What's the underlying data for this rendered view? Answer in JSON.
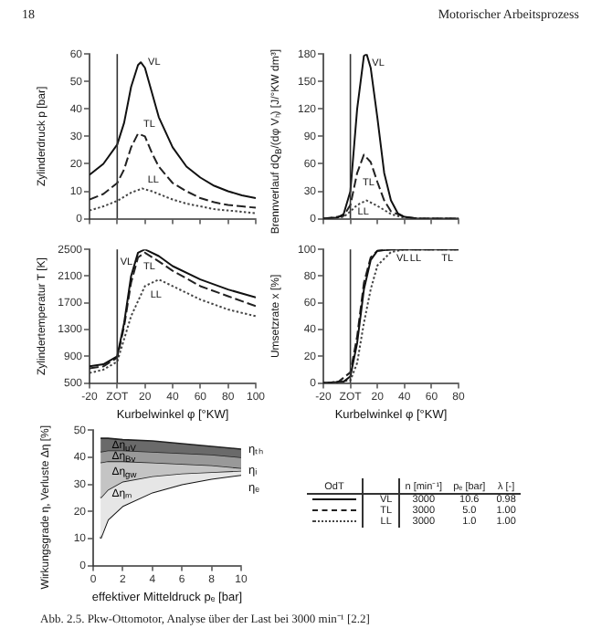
{
  "chart_data": [
    {
      "type": "line",
      "ylabel": "Zylinderdruck p [bar]",
      "xlim": [
        -20,
        100
      ],
      "xticks": [
        -20,
        0,
        20,
        40,
        60,
        80,
        100
      ],
      "ylim": [
        0,
        60
      ],
      "yticks": [
        0,
        10,
        20,
        30,
        40,
        50,
        60
      ],
      "tick_labels": "y",
      "grid": false,
      "legend": false,
      "marker": "none",
      "ref_lines": [
        {
          "axis": "x",
          "value": 0
        }
      ],
      "annotations": [
        "18",
        "Motorischer Arbeitsprozess"
      ],
      "series": [
        {
          "name": "VL",
          "color": "#111111",
          "line_style": "solid",
          "x": [
            -20,
            -10,
            0,
            5,
            10,
            15,
            17,
            20,
            25,
            30,
            40,
            50,
            60,
            70,
            80,
            90,
            100
          ],
          "values": [
            16,
            20,
            27,
            35,
            48,
            56,
            57,
            55,
            46,
            37,
            26,
            19,
            15,
            12,
            10,
            8.5,
            7.5
          ]
        },
        {
          "name": "TL",
          "color": "#222222",
          "line_style": "dashed",
          "x": [
            -20,
            -10,
            0,
            5,
            10,
            15,
            20,
            25,
            30,
            40,
            50,
            60,
            70,
            80,
            90,
            100
          ],
          "values": [
            7,
            9,
            13,
            18,
            26,
            31,
            30,
            24,
            19,
            13,
            10,
            7.5,
            6,
            5,
            4.5,
            4
          ]
        },
        {
          "name": "LL",
          "color": "#444444",
          "line_style": "dotted",
          "x": [
            -20,
            -10,
            0,
            10,
            18,
            25,
            30,
            40,
            50,
            60,
            70,
            80,
            90,
            100
          ],
          "values": [
            3,
            4.5,
            6.5,
            9.5,
            11,
            10,
            9,
            7,
            5.5,
            4.5,
            3.5,
            3,
            2.5,
            2
          ]
        }
      ]
    },
    {
      "type": "line",
      "ylabel": "Brennverlauf dQ$_{B}$/(dφ Vₕ) [J/°KW dm³]",
      "xlim": [
        -20,
        80
      ],
      "xticks": [
        -20,
        0,
        20,
        40,
        60,
        80
      ],
      "ylim": [
        0,
        180
      ],
      "yticks": [
        0,
        30,
        60,
        90,
        120,
        150,
        180
      ],
      "tick_labels": "y",
      "grid": false,
      "legend": false,
      "marker": "none",
      "ref_lines": [
        {
          "axis": "x",
          "value": 0
        }
      ],
      "series": [
        {
          "name": "VL",
          "color": "#111111",
          "line_style": "solid",
          "x": [
            -20,
            -10,
            -5,
            0,
            5,
            10,
            12,
            15,
            20,
            25,
            30,
            35,
            40,
            50,
            80
          ],
          "values": [
            0,
            1,
            5,
            30,
            120,
            178,
            180,
            165,
            110,
            50,
            20,
            6,
            2,
            0,
            0
          ]
        },
        {
          "name": "TL",
          "color": "#222222",
          "line_style": "dashed",
          "x": [
            -20,
            -5,
            0,
            5,
            10,
            15,
            20,
            25,
            30,
            40,
            50,
            80
          ],
          "values": [
            0,
            3,
            15,
            50,
            70,
            62,
            40,
            20,
            8,
            2,
            0,
            0
          ]
        },
        {
          "name": "LL",
          "color": "#444444",
          "line_style": "dotted",
          "x": [
            -20,
            -5,
            0,
            5,
            12,
            20,
            30,
            40,
            50,
            80
          ],
          "values": [
            0,
            2,
            8,
            15,
            20,
            14,
            5,
            1,
            0,
            0
          ]
        }
      ]
    },
    {
      "type": "line",
      "xlabel": "Kurbelwinkel φ [°KW]",
      "ylabel": "Zylindertemperatur T [K]",
      "xlim": [
        -20,
        100
      ],
      "xticks": [
        -20,
        {
          "value": 0,
          "label": "ZOT"
        },
        20,
        40,
        60,
        80,
        100
      ],
      "ylim": [
        500,
        2500
      ],
      "yticks": [
        500,
        900,
        1300,
        1700,
        2100,
        2500
      ],
      "grid": false,
      "legend": false,
      "marker": "none",
      "ref_lines": [
        {
          "axis": "x",
          "value": 0
        }
      ],
      "series": [
        {
          "name": "VL",
          "color": "#111111",
          "line_style": "solid",
          "x": [
            -20,
            -10,
            0,
            5,
            10,
            15,
            20,
            30,
            40,
            60,
            80,
            100
          ],
          "values": [
            750,
            780,
            900,
            1400,
            2100,
            2450,
            2500,
            2400,
            2250,
            2050,
            1900,
            1780
          ]
        },
        {
          "name": "TL",
          "color": "#222222",
          "line_style": "dashed",
          "x": [
            -20,
            -10,
            0,
            5,
            10,
            15,
            20,
            30,
            40,
            60,
            80,
            100
          ],
          "values": [
            720,
            750,
            880,
            1350,
            2000,
            2380,
            2450,
            2320,
            2180,
            1950,
            1800,
            1650
          ]
        },
        {
          "name": "LL",
          "color": "#444444",
          "line_style": "dotted",
          "x": [
            -20,
            -10,
            0,
            10,
            20,
            30,
            40,
            60,
            80,
            100
          ],
          "values": [
            650,
            700,
            820,
            1500,
            1950,
            2050,
            1950,
            1750,
            1600,
            1500
          ]
        }
      ]
    },
    {
      "type": "line",
      "xlabel": "Kurbelwinkel φ [°KW]",
      "ylabel": "Umsetzrate x [%]",
      "xlim": [
        -20,
        80
      ],
      "xticks": [
        -20,
        {
          "value": 0,
          "label": "ZOT"
        },
        20,
        40,
        60,
        80
      ],
      "ylim": [
        0,
        100
      ],
      "yticks": [
        0,
        20,
        40,
        60,
        80,
        100
      ],
      "grid": false,
      "legend": false,
      "marker": "none",
      "ref_lines": [
        {
          "axis": "x",
          "value": 0
        }
      ],
      "series": [
        {
          "name": "VL",
          "color": "#111111",
          "line_style": "solid",
          "x": [
            -20,
            -5,
            0,
            5,
            10,
            15,
            20,
            30,
            80
          ],
          "values": [
            0,
            1,
            5,
            30,
            70,
            92,
            99,
            100,
            100
          ]
        },
        {
          "name": "TL",
          "color": "#222222",
          "line_style": "dashed",
          "x": [
            -20,
            -10,
            0,
            5,
            10,
            15,
            20,
            30,
            80
          ],
          "values": [
            0,
            0,
            8,
            35,
            75,
            94,
            99,
            100,
            100
          ]
        },
        {
          "name": "LL",
          "color": "#444444",
          "line_style": "dotted",
          "x": [
            -20,
            0,
            5,
            10,
            15,
            20,
            30,
            40,
            80
          ],
          "values": [
            0,
            2,
            15,
            45,
            70,
            88,
            98,
            100,
            100
          ]
        }
      ]
    },
    {
      "type": "area",
      "xlabel": "effektiver Mitteldruck pₑ [bar]",
      "ylabel": "Wirkungsgrade η, Verluste Δη [%]",
      "x": [
        0.5,
        1,
        2,
        4,
        6,
        8,
        10
      ],
      "xlim": [
        0,
        10
      ],
      "xticks": [
        0,
        2,
        4,
        6,
        8,
        10
      ],
      "ylim": [
        0,
        50
      ],
      "yticks": [
        0,
        10,
        20,
        30,
        40,
        50
      ],
      "grid": false,
      "legend": false,
      "marker": "none",
      "annotations": [
        "Δη$_{uV}$",
        "Δη$_{Bv}$",
        "Δη$_{gw}$",
        "Δηₘ"
      ],
      "series": [
        {
          "name": "ηₜₕ",
          "color": "#6a6a6a",
          "values": [
            47,
            47,
            46.5,
            46,
            45,
            44,
            43
          ]
        },
        {
          "color": "#999999",
          "values": [
            42,
            42.5,
            42.5,
            42,
            41.5,
            41,
            40
          ]
        },
        {
          "color": "#c4c4c4",
          "values": [
            38,
            38.5,
            38.5,
            38,
            37.5,
            37,
            36
          ]
        },
        {
          "name": "ηᵢ",
          "color": "#e6e6e6",
          "values": [
            25,
            28,
            31,
            33,
            34,
            34.5,
            35
          ]
        },
        {
          "name": "ηₑ",
          "type": "line",
          "color": "#111111",
          "values": [
            10,
            17,
            22,
            27,
            30,
            32,
            33.5
          ]
        }
      ]
    },
    {
      "type": "other",
      "legend_title": "OdT",
      "categories": [
        "VL",
        "TL",
        "LL"
      ],
      "annotations": [
        "Abb. 2.5. Pkw-Ottomotor, Analyse über der Last bei 3000 min⁻¹ [2.2]"
      ],
      "series": [
        {
          "name": "n [min⁻¹]",
          "values": [
            3000,
            3000,
            3000
          ],
          "value_labels": [
            "3000",
            "3000",
            "3000"
          ]
        },
        {
          "name": "pₑ [bar]",
          "values": [
            10.6,
            5.0,
            1.0
          ],
          "value_labels": [
            "10.6",
            "5.0",
            "1.0"
          ]
        },
        {
          "name": "λ [-]",
          "values": [
            0.98,
            1.0,
            1.0
          ],
          "value_labels": [
            "0.98",
            "1.00",
            "1.00"
          ]
        }
      ]
    }
  ]
}
